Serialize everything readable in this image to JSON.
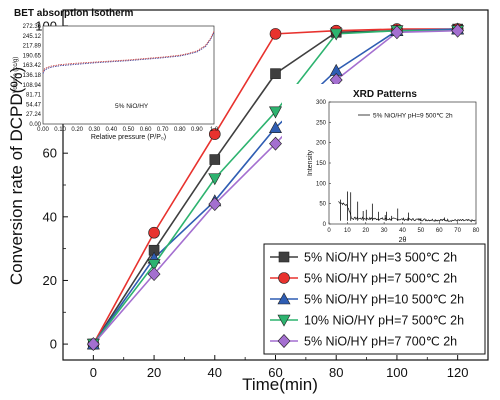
{
  "chart_data": [
    {
      "type": "line",
      "xlabel": "Time(min)",
      "ylabel": "Conversion rate of DCPD(%)",
      "xlim": [
        -10,
        130
      ],
      "ylim": [
        -5,
        105
      ],
      "xticks": [
        "0",
        "20",
        "40",
        "60",
        "80",
        "100",
        "120"
      ],
      "yticks": [
        "0",
        "20",
        "40",
        "60",
        "80",
        "100"
      ],
      "x": [
        0,
        20,
        40,
        60,
        80,
        100,
        120
      ],
      "legend_position": "bottom-right",
      "series": [
        {
          "name": "5% NiO/HY pH=3 500℃ 2h",
          "marker": "square",
          "color": "#3f3f3f",
          "values": [
            0,
            29.5,
            58,
            85,
            98,
            98.5,
            99
          ]
        },
        {
          "name": "5% NiO/HY pH=7 500℃ 2h",
          "marker": "circle",
          "color": "#e8322e",
          "values": [
            0,
            35,
            66,
            97.5,
            98.5,
            99,
            99
          ]
        },
        {
          "name": "5% NiO/HY pH=10 500℃ 2h",
          "marker": "triangle-up",
          "color": "#2f5db3",
          "values": [
            0,
            27,
            45,
            68,
            86,
            98.5,
            99
          ]
        },
        {
          "name": "10% NiO/HY pH=7 500℃ 2h",
          "marker": "triangle-down",
          "color": "#2db36f",
          "values": [
            0,
            25,
            52,
            73,
            97.5,
            98.5,
            98.5
          ]
        },
        {
          "name": "5% NiO/HY pH=7 700℃ 2h",
          "marker": "diamond",
          "color": "#a46fd0",
          "values": [
            0,
            22,
            44,
            63,
            83,
            98,
            98.5
          ]
        }
      ]
    },
    {
      "type": "line",
      "title": "BET absorption isotherm",
      "xlabel": "Relative pressure (P/P₀)",
      "ylabel": "Volume (cc/g)",
      "note": "5% NiO/HY",
      "xticks": [
        "0.00",
        "0.10",
        "0.20",
        "0.30",
        "0.40",
        "0.50",
        "0.60",
        "0.70",
        "0.80",
        "0.90",
        "1.0"
      ],
      "yticks": [
        "0.00",
        "27.24",
        "54.47",
        "81.71",
        "108.94",
        "136.18",
        "163.42",
        "190.65",
        "217.89",
        "245.12",
        "272.36"
      ],
      "xlim": [
        0,
        1.0
      ],
      "ylim": [
        0,
        272.36
      ],
      "series": [
        {
          "name": "adsorption",
          "x": [
            0.0,
            0.01,
            0.03,
            0.05,
            0.1,
            0.2,
            0.3,
            0.4,
            0.5,
            0.6,
            0.7,
            0.8,
            0.85,
            0.9,
            0.95,
            0.98,
            1.0
          ],
          "values": [
            140,
            150,
            155,
            158,
            162,
            166,
            170,
            173,
            176,
            180,
            184,
            189,
            194,
            200,
            215,
            235,
            255
          ]
        },
        {
          "name": "desorption",
          "x": [
            0.0,
            0.01,
            0.03,
            0.05,
            0.1,
            0.2,
            0.3,
            0.4,
            0.5,
            0.6,
            0.7,
            0.8,
            0.85,
            0.9,
            0.95,
            0.98,
            1.0
          ],
          "values": [
            145,
            154,
            158,
            161,
            165,
            169,
            172,
            175,
            178,
            182,
            186,
            191,
            196,
            203,
            218,
            238,
            258
          ]
        }
      ]
    },
    {
      "type": "line",
      "title": "XRD Patterns",
      "xlabel": "2θ",
      "ylabel": "Intensity",
      "xticks": [
        "0",
        "10",
        "20",
        "30",
        "40",
        "50",
        "60",
        "70",
        "80"
      ],
      "yticks": [
        "0",
        "50",
        "100",
        "150",
        "200",
        "250",
        "300"
      ],
      "xlim": [
        0,
        80
      ],
      "ylim": [
        0,
        300
      ],
      "legend": [
        "5% NiO/HY pH=9 500℃ 2h"
      ],
      "legend_position": "top-right",
      "peaks": [
        {
          "x": 6.2,
          "y": 60
        },
        {
          "x": 10.1,
          "y": 80
        },
        {
          "x": 11.8,
          "y": 78
        },
        {
          "x": 15.6,
          "y": 55
        },
        {
          "x": 18.6,
          "y": 32
        },
        {
          "x": 20.3,
          "y": 35
        },
        {
          "x": 23.6,
          "y": 50
        },
        {
          "x": 27.0,
          "y": 30
        },
        {
          "x": 30.6,
          "y": 22
        },
        {
          "x": 31.3,
          "y": 30
        },
        {
          "x": 34.1,
          "y": 20
        },
        {
          "x": 37.4,
          "y": 38
        },
        {
          "x": 43.3,
          "y": 28
        },
        {
          "x": 50.0,
          "y": 14
        },
        {
          "x": 62.9,
          "y": 16
        }
      ]
    }
  ]
}
